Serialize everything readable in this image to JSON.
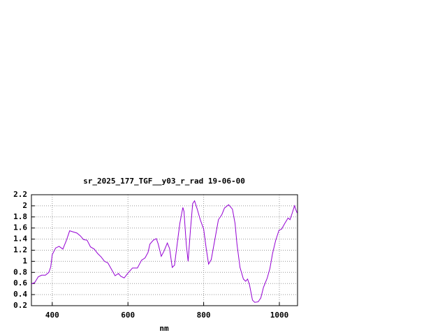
{
  "chart_data": {
    "type": "line",
    "title": "sr_2025_177_TGF__y03_r_rad 19-06-00",
    "x_label": "nm",
    "grid": true,
    "xlim": [
      345,
      1048
    ],
    "ylim": [
      0.2,
      2.2
    ],
    "xticks": [
      400,
      600,
      800,
      1000
    ],
    "yticks": [
      0.2,
      0.4,
      0.6,
      0.8,
      1,
      1.2,
      1.4,
      1.6,
      1.8,
      2,
      2.2
    ],
    "series": [
      {
        "color": "#9400d3",
        "x": [
          345,
          354,
          363,
          372,
          382,
          391,
          396,
          400,
          409,
          418,
          428,
          437,
          446,
          455,
          465,
          474,
          483,
          492,
          501,
          511,
          520,
          529,
          538,
          547,
          557,
          566,
          575,
          581,
          590,
          599,
          612,
          625,
          636,
          645,
          653,
          658,
          667,
          675,
          680,
          688,
          695,
          704,
          710,
          717,
          723,
          730,
          737,
          745,
          748,
          754,
          759,
          765,
          771,
          776,
          783,
          791,
          800,
          807,
          813,
          820,
          829,
          839,
          848,
          855,
          866,
          876,
          883,
          888,
          896,
          905,
          911,
          916,
          921,
          929,
          935,
          944,
          951,
          958,
          968,
          975,
          982,
          990,
          999,
          1006,
          1014,
          1023,
          1028,
          1034,
          1040,
          1043,
          1047
        ],
        "values": [
          0.59,
          0.62,
          0.72,
          0.75,
          0.75,
          0.8,
          0.9,
          1.12,
          1.24,
          1.27,
          1.22,
          1.37,
          1.55,
          1.53,
          1.51,
          1.46,
          1.39,
          1.38,
          1.26,
          1.22,
          1.14,
          1.08,
          1.0,
          0.97,
          0.85,
          0.74,
          0.78,
          0.73,
          0.7,
          0.78,
          0.88,
          0.88,
          1.02,
          1.06,
          1.16,
          1.31,
          1.38,
          1.41,
          1.31,
          1.09,
          1.18,
          1.33,
          1.23,
          0.89,
          0.93,
          1.31,
          1.68,
          1.97,
          1.9,
          1.31,
          1.0,
          1.56,
          2.04,
          2.09,
          1.94,
          1.75,
          1.58,
          1.22,
          0.95,
          1.03,
          1.37,
          1.75,
          1.84,
          1.96,
          2.02,
          1.94,
          1.68,
          1.31,
          0.89,
          0.68,
          0.64,
          0.68,
          0.58,
          0.3,
          0.26,
          0.27,
          0.34,
          0.53,
          0.7,
          0.87,
          1.14,
          1.37,
          1.56,
          1.58,
          1.68,
          1.78,
          1.75,
          1.87,
          2.0,
          1.94,
          1.87
        ]
      }
    ]
  }
}
